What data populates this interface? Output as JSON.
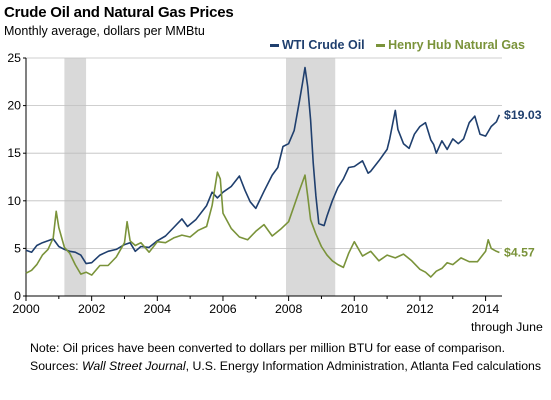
{
  "title": "Crude Oil and Natural Gas Prices",
  "subtitle": "Monthly average, dollars per MMBtu",
  "legend": {
    "wti": "WTI Crude Oil",
    "henry": "Henry Hub Natural Gas"
  },
  "colors": {
    "wti": "#1f3f6e",
    "henry": "#7a933a",
    "recession": "#d9d9d9",
    "axis": "#000000"
  },
  "end_labels": {
    "wti": "$19.03",
    "henry": "$4.57"
  },
  "through_label": "through June",
  "note": "Note: Oil prices have been converted to dollars per million BTU for ease of comparison.",
  "sources": {
    "prefix": "Sources: ",
    "journal": "Wall Street Journal",
    "rest": ", U.S. Energy Information Administration, Atlanta Fed calculations"
  },
  "chart_data": {
    "type": "line",
    "title": "Crude Oil and Natural Gas Prices",
    "subtitle": "Monthly average, dollars per MMBtu",
    "xlabel": "",
    "ylabel": "",
    "xlim": [
      2000,
      2014.5
    ],
    "ylim": [
      0,
      25
    ],
    "x_ticks": [
      2000,
      2002,
      2004,
      2006,
      2008,
      2010,
      2012,
      2014
    ],
    "y_ticks": [
      0,
      5,
      10,
      15,
      20,
      25
    ],
    "grid": "horizontal",
    "legend_position": "top-right",
    "shaded_periods": [
      [
        2001.17,
        2001.83
      ],
      [
        2007.92,
        2009.42
      ]
    ],
    "series": [
      {
        "name": "WTI Crude Oil",
        "x": [
          2000.0,
          2000.17,
          2000.33,
          2000.5,
          2000.67,
          2000.83,
          2001.0,
          2001.17,
          2001.33,
          2001.5,
          2001.67,
          2001.83,
          2002.0,
          2002.25,
          2002.5,
          2002.75,
          2003.0,
          2003.17,
          2003.33,
          2003.5,
          2003.75,
          2004.0,
          2004.25,
          2004.5,
          2004.75,
          2004.92,
          2005.17,
          2005.5,
          2005.67,
          2005.83,
          2006.0,
          2006.25,
          2006.5,
          2006.67,
          2006.83,
          2007.0,
          2007.25,
          2007.5,
          2007.67,
          2007.83,
          2008.0,
          2008.17,
          2008.33,
          2008.42,
          2008.5,
          2008.58,
          2008.67,
          2008.75,
          2008.83,
          2008.92,
          2009.0,
          2009.08,
          2009.17,
          2009.33,
          2009.5,
          2009.67,
          2009.83,
          2010.0,
          2010.25,
          2010.42,
          2010.5,
          2010.75,
          2011.0,
          2011.08,
          2011.25,
          2011.33,
          2011.5,
          2011.67,
          2011.83,
          2012.0,
          2012.17,
          2012.33,
          2012.42,
          2012.5,
          2012.67,
          2012.83,
          2013.0,
          2013.17,
          2013.33,
          2013.5,
          2013.67,
          2013.83,
          2014.0,
          2014.17,
          2014.33,
          2014.42
        ],
        "values": [
          4.8,
          4.6,
          5.3,
          5.6,
          5.8,
          6.0,
          5.2,
          4.9,
          4.7,
          4.6,
          4.3,
          3.4,
          3.5,
          4.3,
          4.7,
          4.9,
          5.4,
          5.6,
          4.7,
          5.2,
          5.1,
          5.8,
          6.3,
          7.2,
          8.1,
          7.3,
          8.0,
          9.5,
          10.9,
          10.3,
          10.9,
          11.5,
          12.6,
          11.1,
          9.9,
          9.2,
          11.0,
          12.7,
          13.5,
          15.7,
          16.0,
          17.4,
          20.5,
          22.3,
          24.0,
          22.0,
          18.5,
          14.0,
          10.5,
          7.6,
          7.5,
          7.4,
          8.4,
          10.0,
          11.4,
          12.3,
          13.5,
          13.6,
          14.2,
          12.9,
          13.1,
          14.2,
          15.4,
          16.5,
          19.5,
          17.5,
          16.0,
          15.5,
          17.0,
          17.8,
          18.2,
          16.4,
          15.9,
          15.0,
          16.3,
          15.4,
          16.5,
          16.0,
          16.5,
          18.2,
          18.9,
          17.0,
          16.8,
          17.8,
          18.3,
          19.03
        ]
      },
      {
        "name": "Henry Hub Natural Gas",
        "x": [
          2000.0,
          2000.17,
          2000.33,
          2000.5,
          2000.67,
          2000.83,
          2000.92,
          2001.0,
          2001.17,
          2001.33,
          2001.5,
          2001.67,
          2001.83,
          2002.0,
          2002.25,
          2002.5,
          2002.75,
          2003.0,
          2003.08,
          2003.17,
          2003.33,
          2003.5,
          2003.75,
          2004.0,
          2004.25,
          2004.5,
          2004.75,
          2005.0,
          2005.25,
          2005.5,
          2005.67,
          2005.75,
          2005.83,
          2005.92,
          2006.0,
          2006.25,
          2006.5,
          2006.75,
          2007.0,
          2007.25,
          2007.5,
          2007.75,
          2008.0,
          2008.17,
          2008.33,
          2008.5,
          2008.58,
          2008.67,
          2008.83,
          2009.0,
          2009.17,
          2009.33,
          2009.5,
          2009.67,
          2009.83,
          2010.0,
          2010.25,
          2010.5,
          2010.75,
          2011.0,
          2011.25,
          2011.5,
          2011.75,
          2012.0,
          2012.17,
          2012.33,
          2012.5,
          2012.67,
          2012.83,
          2013.0,
          2013.25,
          2013.5,
          2013.75,
          2014.0,
          2014.08,
          2014.17,
          2014.33,
          2014.42
        ],
        "values": [
          2.4,
          2.7,
          3.3,
          4.3,
          4.9,
          6.1,
          8.9,
          7.2,
          5.1,
          4.5,
          3.3,
          2.3,
          2.5,
          2.2,
          3.2,
          3.2,
          4.1,
          5.6,
          7.8,
          5.8,
          5.3,
          5.6,
          4.6,
          5.7,
          5.6,
          6.1,
          6.4,
          6.2,
          6.9,
          7.3,
          9.5,
          11.3,
          13.0,
          12.3,
          8.7,
          7.1,
          6.2,
          5.9,
          6.8,
          7.5,
          6.3,
          7.0,
          7.8,
          9.5,
          11.1,
          12.7,
          10.5,
          8.0,
          6.5,
          5.2,
          4.3,
          3.7,
          3.3,
          3.0,
          4.5,
          5.7,
          4.2,
          4.7,
          3.7,
          4.3,
          4.0,
          4.4,
          3.7,
          2.8,
          2.5,
          2.0,
          2.6,
          2.9,
          3.5,
          3.3,
          4.0,
          3.6,
          3.6,
          4.7,
          5.9,
          5.0,
          4.7,
          4.57
        ]
      }
    ],
    "end_labels": [
      "$19.03",
      "$4.57"
    ]
  }
}
